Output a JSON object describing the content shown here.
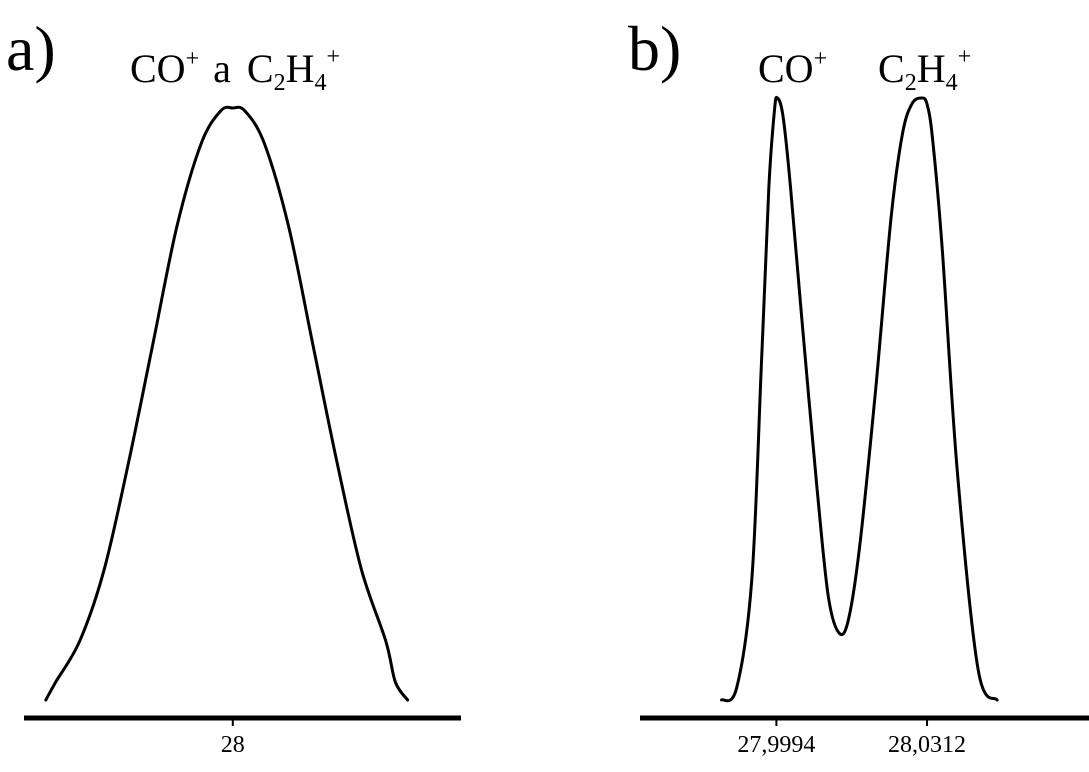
{
  "chart_data": [
    {
      "type": "line",
      "panel_label": "a)",
      "annotation": {
        "species1": "CO",
        "charge": "+",
        "connector": "a",
        "species2": {
          "c": "C",
          "c_count": "2",
          "h": "H",
          "h_count": "4",
          "charge": "+"
        }
      },
      "x_ticks": [
        {
          "value": 28,
          "label": "28"
        }
      ],
      "xlim": [
        27.914,
        28.094
      ],
      "ylim": [
        0,
        1
      ],
      "grid": false,
      "series": [
        {
          "x": [
            27.923,
            27.927,
            27.937,
            27.947,
            27.957,
            27.967,
            27.977,
            27.987,
            27.995,
            28.0,
            28.005,
            28.013,
            28.023,
            28.033,
            28.043,
            28.053,
            28.063,
            28.067,
            28.072
          ],
          "values": [
            0,
            0.03,
            0.1,
            0.22,
            0.4,
            0.6,
            0.8,
            0.94,
            0.995,
            1.0,
            0.995,
            0.94,
            0.8,
            0.6,
            0.4,
            0.22,
            0.1,
            0.03,
            0
          ]
        }
      ]
    },
    {
      "type": "line",
      "panel_label": "b)",
      "annotation": {
        "peak1": {
          "species": "CO",
          "charge": "+"
        },
        "peak2": {
          "c": "C",
          "c_count": "2",
          "h": "H",
          "h_count": "4",
          "charge": "+"
        }
      },
      "x_ticks": [
        {
          "value": 27.9994,
          "label": "27,9994"
        },
        {
          "value": 28.0312,
          "label": "28,0312"
        }
      ],
      "xlim": [
        27.9706,
        28.0654
      ],
      "ylim": [
        0,
        1
      ],
      "grid": false,
      "series": [
        {
          "x": [
            27.9878,
            27.991,
            27.9942,
            27.9962,
            27.9978,
            27.999,
            27.9996,
            28.0008,
            28.0024,
            28.0048,
            28.008,
            28.0104,
            28.0128,
            28.0148,
            28.0172,
            28.0204,
            28.0236,
            28.026,
            28.028,
            28.03,
            28.0312,
            28.0324,
            28.0344,
            28.0376,
            28.042,
            28.046
          ],
          "values": [
            0,
            0.02,
            0.2,
            0.55,
            0.85,
            0.98,
            1.0,
            0.97,
            0.85,
            0.63,
            0.35,
            0.17,
            0.11,
            0.14,
            0.27,
            0.52,
            0.8,
            0.94,
            0.99,
            1.0,
            0.99,
            0.93,
            0.75,
            0.38,
            0.05,
            0
          ]
        }
      ]
    }
  ]
}
